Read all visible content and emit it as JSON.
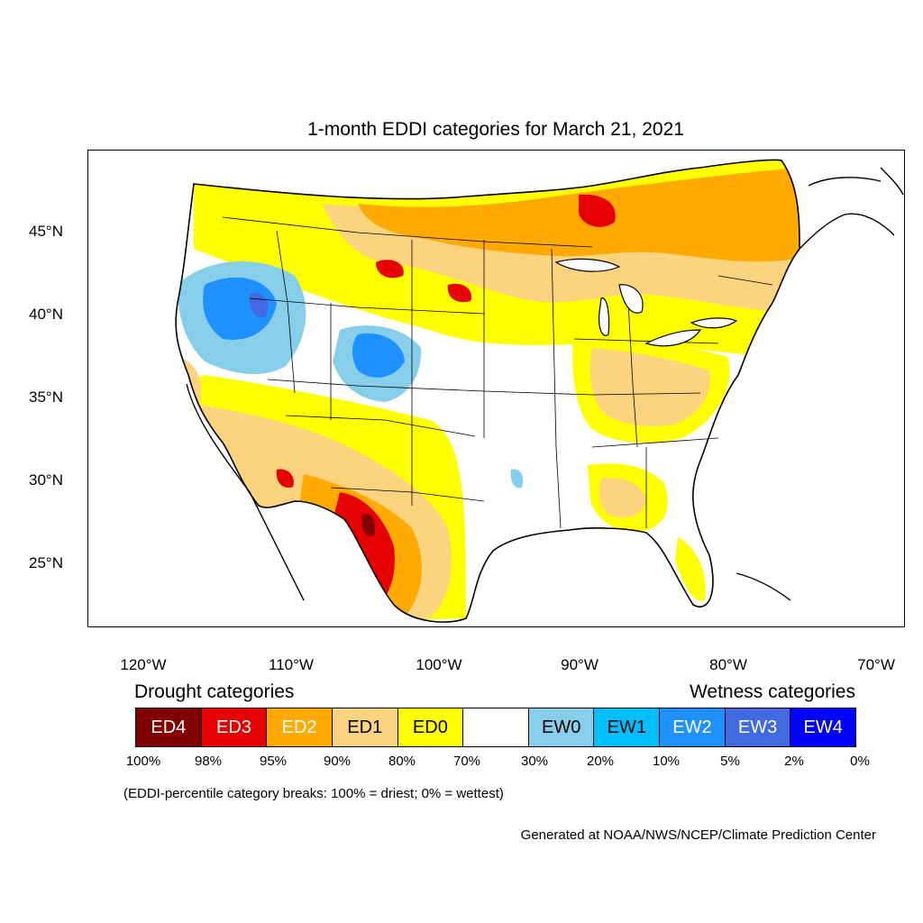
{
  "title": "1-month EDDI categories for March 21, 2021",
  "map": {
    "lat_labels": [
      "45°N",
      "40°N",
      "35°N",
      "30°N",
      "25°N"
    ],
    "lon_labels": [
      "120°W",
      "110°W",
      "100°W",
      "90°W",
      "80°W",
      "70°W"
    ]
  },
  "legend": {
    "drought_title": "Drought categories",
    "wetness_title": "Wetness categories",
    "categories": [
      {
        "label": "ED4",
        "color": "#800000",
        "text_color": "#ffffff"
      },
      {
        "label": "ED3",
        "color": "#e60000",
        "text_color": "#ffffff"
      },
      {
        "label": "ED2",
        "color": "#ffaa00",
        "text_color": "#ffffff"
      },
      {
        "label": "ED1",
        "color": "#fcd37f",
        "text_color": "#000000"
      },
      {
        "label": "ED0",
        "color": "#ffff00",
        "text_color": "#000000"
      },
      {
        "label": "",
        "color": "#ffffff",
        "text_color": "#000000"
      },
      {
        "label": "EW0",
        "color": "#87ceeb",
        "text_color": "#000000"
      },
      {
        "label": "EW1",
        "color": "#00bfff",
        "text_color": "#000000"
      },
      {
        "label": "EW2",
        "color": "#1e90ff",
        "text_color": "#ffffff"
      },
      {
        "label": "EW3",
        "color": "#4169e1",
        "text_color": "#ffffff"
      },
      {
        "label": "EW4",
        "color": "#0000ff",
        "text_color": "#ffffff"
      }
    ],
    "percent_breaks": [
      "100%",
      "98%",
      "95%",
      "90%",
      "80%",
      "70%",
      "30%",
      "20%",
      "10%",
      "5%",
      "2%",
      "0%"
    ],
    "note": "(EDDI-percentile category breaks: 100% = driest; 0% = wettest)"
  },
  "credit": "Generated at NOAA/NWS/NCEP/Climate Prediction Center"
}
